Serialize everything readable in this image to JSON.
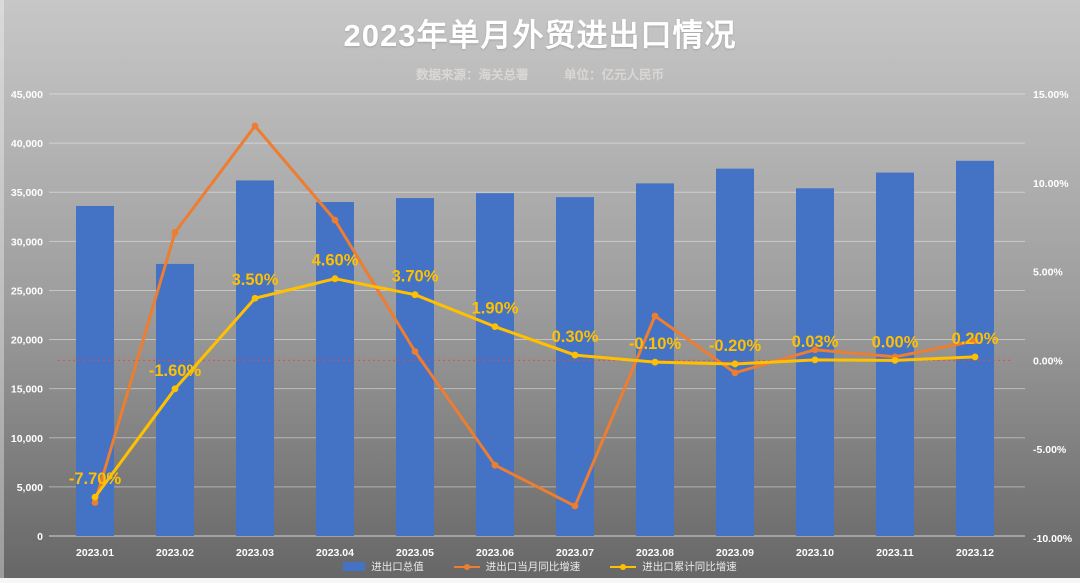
{
  "colors": {
    "bar": "#4472c4",
    "line_monthly": "#ed7d31",
    "line_cumulative": "#ffc000",
    "data_label": "#ffc000",
    "axis_text": "#ffffff",
    "gridline": "#ffffff",
    "zero_line": "#d94f3d",
    "title_text": "#ffffff",
    "subtitle_text": "#dad7d4"
  },
  "chart_data": {
    "type": "combo-bar-line",
    "title": "2023年单月外贸进出口情况",
    "subtitle_source": "数据来源：海关总署",
    "subtitle_unit": "单位：亿元人民币",
    "legend_position": "bottom",
    "grid": true,
    "categories": [
      "2023.01",
      "2023.02",
      "2023.03",
      "2023.04",
      "2023.05",
      "2023.06",
      "2023.07",
      "2023.08",
      "2023.09",
      "2023.10",
      "2023.11",
      "2023.12"
    ],
    "series": [
      {
        "name": "进出口总值",
        "type": "bar",
        "axis": "left",
        "values": [
          33600,
          27700,
          36200,
          34000,
          34400,
          34900,
          34500,
          35900,
          37400,
          35400,
          37000,
          38200
        ]
      },
      {
        "name": "进出口当月同比增速",
        "type": "line",
        "axis": "right",
        "values": [
          -8.0,
          7.2,
          13.2,
          7.9,
          0.5,
          -5.9,
          -8.2,
          2.5,
          -0.7,
          0.6,
          0.2,
          1.1
        ]
      },
      {
        "name": "进出口累计同比增速",
        "type": "line",
        "axis": "right",
        "values": [
          -7.7,
          -1.6,
          3.5,
          4.6,
          3.7,
          1.9,
          0.3,
          -0.1,
          -0.2,
          0.03,
          0.0,
          0.2
        ],
        "data_labels": [
          "-7.70%",
          "-1.60%",
          "3.50%",
          "4.60%",
          "3.70%",
          "1.90%",
          "0.30%",
          "-0.10%",
          "-0.20%",
          "0.03%",
          "0.00%",
          "0.20%"
        ]
      }
    ],
    "y_left": {
      "min": 0,
      "max": 45000,
      "step": 5000,
      "tick_labels": [
        "45,000",
        "40,000",
        "35,000",
        "30,000",
        "25,000",
        "20,000",
        "15,000",
        "10,000",
        "5,000",
        "0"
      ]
    },
    "y_right": {
      "min": -10,
      "max": 15,
      "step": 5,
      "tick_labels": [
        "15.00%",
        "10.00%",
        "5.00%",
        "0.00%",
        "-5.00%",
        "-10.00%"
      ]
    },
    "zero_reference_line": {
      "axis": "right",
      "value": 0,
      "style": "red-dotted"
    }
  }
}
